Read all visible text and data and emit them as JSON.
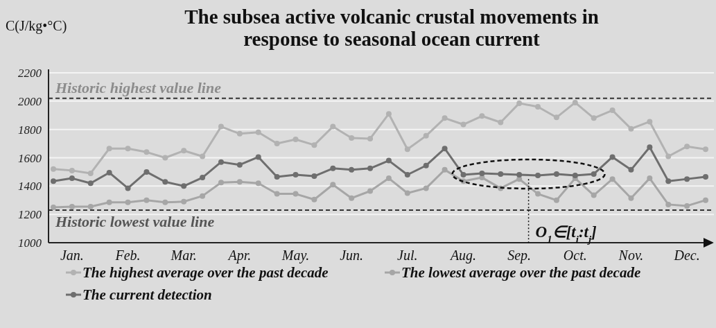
{
  "chart_data": {
    "type": "line",
    "title": "The subsea active volcanic crustal movements  in\nresponse to seasonal ocean current",
    "ylabel": "C(J/kg•°C)",
    "categories": [
      null,
      "Jan.",
      null,
      null,
      "Feb.",
      null,
      null,
      "Mar.",
      null,
      null,
      "Apr.",
      null,
      null,
      "May.",
      null,
      null,
      "Jun.",
      null,
      null,
      "Jul.",
      null,
      null,
      "Aug.",
      null,
      null,
      "Sep.",
      null,
      null,
      "Oct.",
      null,
      null,
      "Nov.",
      null,
      null,
      "Dec.",
      null
    ],
    "ylim": [
      1000,
      2200
    ],
    "yticks": [
      1000,
      1200,
      1400,
      1600,
      1800,
      2000,
      2200
    ],
    "grid": "y",
    "legend": "bottom",
    "marker": "circle",
    "line_style": "solid",
    "series": [
      {
        "name": "The highest average over the past decade",
        "color": "#b2b2b2",
        "values": [
          1520,
          1510,
          1490,
          1665,
          1665,
          1640,
          1600,
          1650,
          1610,
          1820,
          1770,
          1780,
          1700,
          1730,
          1690,
          1820,
          1740,
          1735,
          1910,
          1660,
          1755,
          1880,
          1835,
          1895,
          1850,
          1985,
          1960,
          1885,
          1990,
          1880,
          1935,
          1805,
          1855,
          1610,
          1680,
          1660
        ]
      },
      {
        "name": "The lowest average over the past decade",
        "color": "#a6a6a6",
        "values": [
          1250,
          1255,
          1255,
          1285,
          1285,
          1300,
          1285,
          1290,
          1330,
          1425,
          1430,
          1420,
          1345,
          1345,
          1305,
          1410,
          1315,
          1365,
          1455,
          1350,
          1385,
          1515,
          1435,
          1460,
          1385,
          1450,
          1345,
          1300,
          1455,
          1335,
          1450,
          1315,
          1455,
          1270,
          1260,
          1300
        ]
      },
      {
        "name": "The current detection",
        "color": "#6e6e6e",
        "values": [
          1435,
          1455,
          1420,
          1495,
          1385,
          1500,
          1430,
          1400,
          1460,
          1570,
          1550,
          1605,
          1465,
          1480,
          1470,
          1525,
          1515,
          1525,
          1580,
          1480,
          1545,
          1665,
          1480,
          1490,
          1485,
          1480,
          1475,
          1485,
          1475,
          1485,
          1605,
          1515,
          1675,
          1435,
          1450,
          1465
        ]
      }
    ],
    "ref_lines": [
      {
        "axis": "y",
        "value": 2020,
        "label": "Historic highest value line",
        "color": "#333333",
        "line_style": "dashed"
      },
      {
        "axis": "y",
        "value": 1230,
        "label": "Historic lowest value line",
        "color": "#333333",
        "line_style": "dashed"
      }
    ],
    "annotations": [
      {
        "text": "O$_{1}$∈[t$_{i}$:t$_{j}$]",
        "y": 1450
      }
    ]
  }
}
